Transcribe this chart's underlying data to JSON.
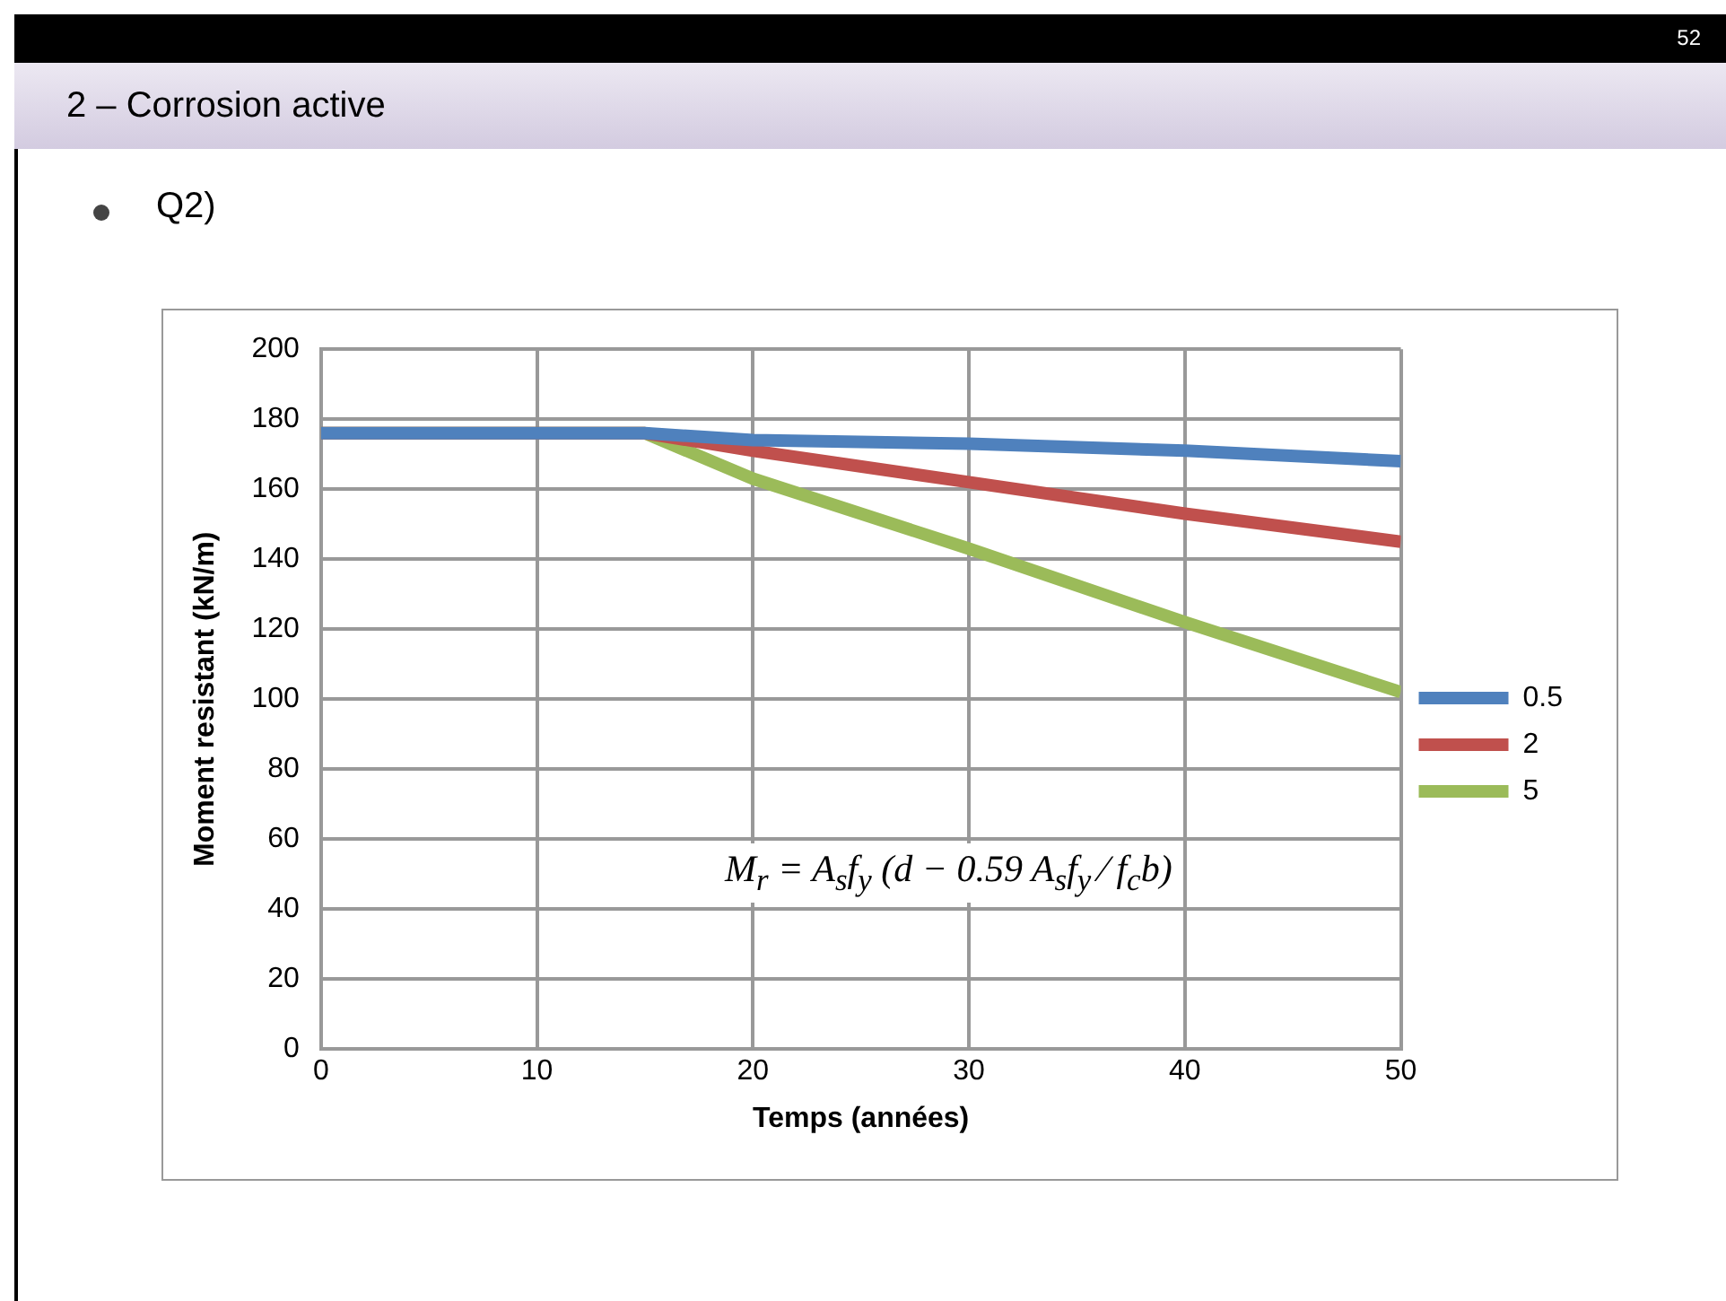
{
  "chart_data": {
    "type": "line",
    "title": "2 – Corrosion active",
    "subtitle": "Q2)",
    "xlabel": "Temps (années)",
    "ylabel": "Moment resistant (kN/m)",
    "x": [
      0,
      15,
      20,
      30,
      40,
      50
    ],
    "series": [
      {
        "name": "0.5",
        "color": "#4f81bd",
        "values": [
          176,
          176,
          174,
          173,
          171,
          168
        ]
      },
      {
        "name": "2",
        "color": "#c0504d",
        "values": [
          176,
          176,
          171,
          162,
          153,
          145
        ]
      },
      {
        "name": "5",
        "color": "#9bbb59",
        "values": [
          176,
          176,
          163,
          143,
          122,
          102
        ]
      }
    ],
    "xlim": [
      0,
      50
    ],
    "xticks": [
      0,
      10,
      20,
      30,
      40,
      50
    ],
    "ylim": [
      0,
      200
    ],
    "yticks": [
      0,
      20,
      40,
      60,
      80,
      100,
      120,
      140,
      160,
      180,
      200
    ],
    "grid": true,
    "legend": "right",
    "marker": "none",
    "line_style": "solid",
    "annotations": [
      "52",
      "M$_{r}$ = A$_{s}$f$_{y}$ (d − 0.59 A$_{s}$f$_{y}$ ⁄ f$_{c}$b)"
    ]
  }
}
